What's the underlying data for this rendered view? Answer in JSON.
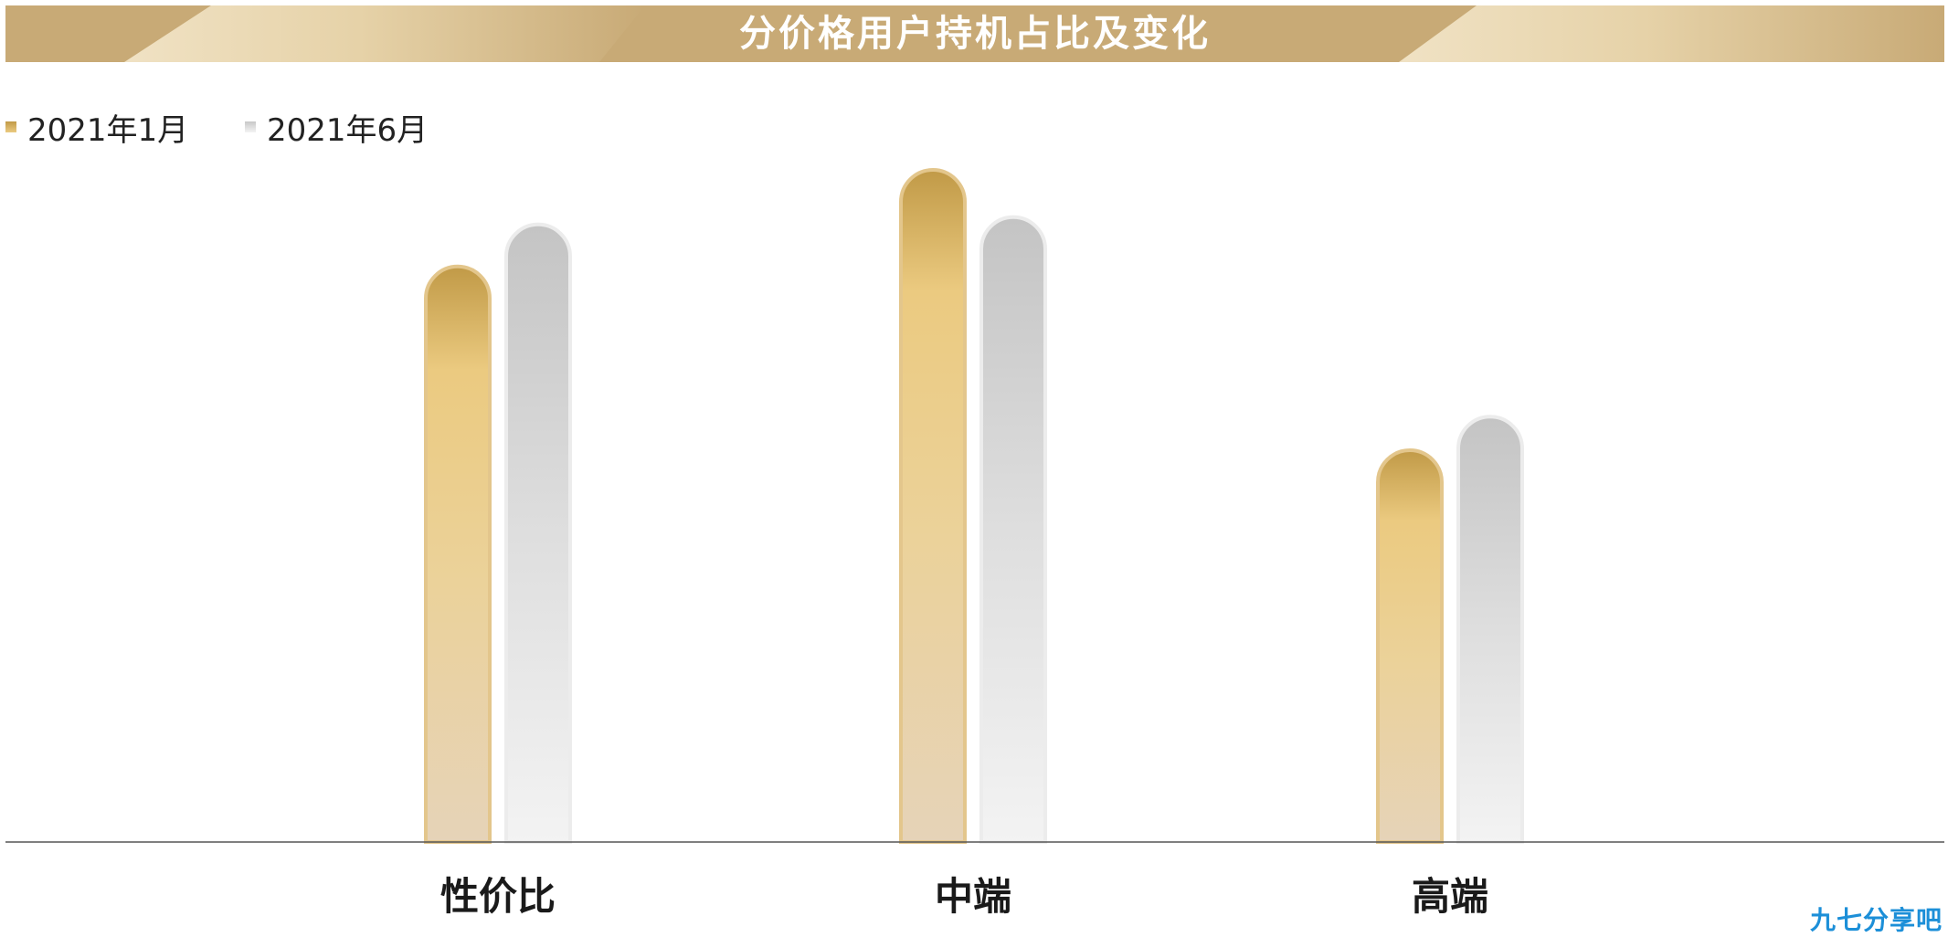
{
  "title": "分价格用户持机占比及变化",
  "legend": [
    {
      "label": "2021年1月",
      "color": "#e8c77e"
    },
    {
      "label": "2021年6月",
      "color": "#d6d6d6"
    }
  ],
  "colors": {
    "banner": "#c8aa76",
    "gold_dark": "#c19a47",
    "gold_mid": "#ebca80",
    "gold_light": "#e6d3b8",
    "silver_dark": "#c8c8c8",
    "silver_light": "#f3f3f3",
    "axis": "#555555"
  },
  "chart_data": {
    "type": "bar",
    "categories": [
      "性价比",
      "中端",
      "高端"
    ],
    "series": [
      {
        "name": "2021年1月",
        "values": [
          54.8,
          64.0,
          37.3
        ]
      },
      {
        "name": "2021年6月",
        "values": [
          58.8,
          59.5,
          40.5
        ]
      }
    ],
    "ylim": [
      0,
      100
    ],
    "xlabel": "",
    "ylabel": "",
    "grid": false,
    "legend_position": "top-left"
  },
  "watermark": "九七分享吧"
}
